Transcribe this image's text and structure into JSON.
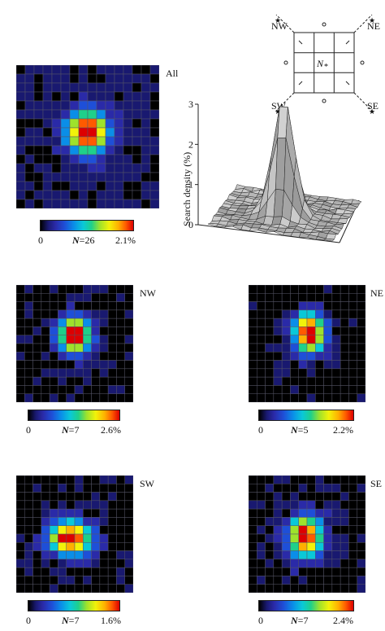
{
  "panels": {
    "all": {
      "label": "All",
      "cbar_min": "0",
      "n_label": "N",
      "n_value": "=26",
      "cbar_max": "2.1%"
    },
    "nw": {
      "label": "NW",
      "cbar_min": "0",
      "n_label": "N",
      "n_value": "=7",
      "cbar_max": "2.6%"
    },
    "ne": {
      "label": "NE",
      "cbar_min": "0",
      "n_label": "N",
      "n_value": "=5",
      "cbar_max": "2.2%"
    },
    "sw": {
      "label": "SW",
      "cbar_min": "0",
      "n_label": "N",
      "n_value": "=7",
      "cbar_max": "1.6%"
    },
    "se": {
      "label": "SE",
      "cbar_min": "0",
      "n_label": "N",
      "n_value": "=7",
      "cbar_max": "2.4%"
    }
  },
  "schematic": {
    "nw": "NW",
    "ne": "NE",
    "sw": "SW",
    "se": "SE",
    "center": "N",
    "center_sub": "*"
  },
  "surface": {
    "ylabel": "Search density (%)",
    "ticks": [
      "0",
      "1",
      "2",
      "3"
    ],
    "ylim": [
      0,
      3
    ]
  },
  "colormap": [
    "#191970",
    "#2a2aa8",
    "#1e4fd8",
    "#0a8ee8",
    "#0ac8d8",
    "#1fd08a",
    "#9ee22c",
    "#f2f20a",
    "#ffb000",
    "#ff5a00",
    "#dd0000"
  ],
  "colors": {
    "empty_cell": "#000000",
    "grid_line": "#555566"
  }
}
